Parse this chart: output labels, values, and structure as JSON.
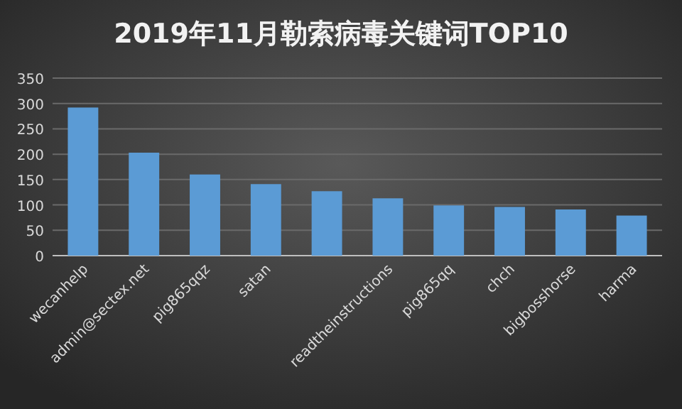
{
  "chart_data": {
    "type": "bar",
    "title": "2019年11月勒索病毒关键词TOP10",
    "categories": [
      "wecanhelp",
      "admin@sectex.net",
      "pig865qqz",
      "satan",
      null,
      "readtheinstructions",
      "pig865qq",
      "chch",
      "bigbosshorse",
      "harma"
    ],
    "values": [
      292,
      203,
      160,
      141,
      127,
      113,
      99,
      96,
      91,
      79
    ],
    "color": "#5b9bd5",
    "ylim": [
      0,
      350
    ],
    "yticks": [
      0,
      50,
      100,
      150,
      200,
      250,
      300,
      350
    ],
    "grid": "y"
  }
}
